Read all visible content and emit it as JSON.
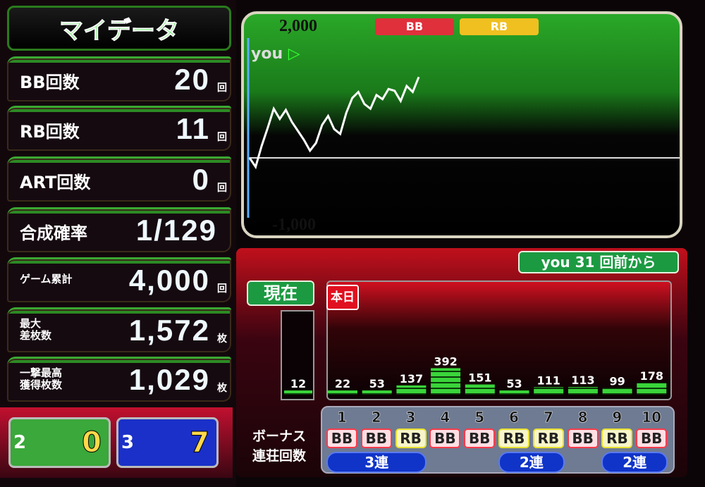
{
  "title": "マイデータ",
  "stats": [
    {
      "label": "BB回数",
      "value": "20",
      "unit": "回"
    },
    {
      "label": "RB回数",
      "value": "11",
      "unit": "回"
    },
    {
      "label": "ART回数",
      "value": "0",
      "unit": "回"
    },
    {
      "label": "合成確率",
      "value": "1/129",
      "unit": ""
    },
    {
      "label": "ゲーム累計",
      "value": "4,000",
      "unit": "回"
    },
    {
      "label": "最大\n差枚数",
      "value": "1,572",
      "unit": "枚"
    },
    {
      "label": "一撃最高\n獲得枚数",
      "value": "1,029",
      "unit": "枚"
    }
  ],
  "mini": [
    {
      "index": "2",
      "value": "0",
      "color": "#3aa83a"
    },
    {
      "index": "3",
      "value": "7",
      "color": "#1a30c8"
    }
  ],
  "graph": {
    "top_label": "2,000",
    "bottom_label": "-1,000",
    "legend": [
      "BB",
      "RB"
    ],
    "legend_colors": [
      "#e0303c",
      "#f0c020"
    ],
    "you_label": "you",
    "chart_data": {
      "type": "line",
      "ylim": [
        -1000,
        2000
      ],
      "y": [
        0,
        -150,
        200,
        500,
        820,
        650,
        800,
        600,
        450,
        300,
        120,
        250,
        550,
        700,
        480,
        400,
        750,
        1000,
        1100,
        900,
        820,
        1050,
        980,
        1150,
        1120,
        950,
        1200,
        1100,
        1350
      ]
    }
  },
  "history": {
    "you_label": "you",
    "since": "31 回前から",
    "current_label": "現在",
    "today_label": "本日",
    "chart_data": {
      "type": "bar",
      "ylim": [
        0,
        1000
      ],
      "yticks": [
        "1000",
        "500",
        "0"
      ],
      "current": 12,
      "values": [
        22,
        53,
        137,
        392,
        151,
        53,
        111,
        113,
        99,
        178
      ]
    },
    "bonus_label": "ボーナス",
    "streak_label": "連荘回数",
    "numbers": [
      "1",
      "2",
      "3",
      "4",
      "5",
      "6",
      "7",
      "8",
      "9",
      "10"
    ],
    "types": [
      "BB",
      "BB",
      "RB",
      "BB",
      "BB",
      "RB",
      "RB",
      "BB",
      "RB",
      "BB"
    ],
    "streaks": [
      {
        "label": "3連",
        "from": 1,
        "to": 3
      },
      {
        "label": "2連",
        "from": 6,
        "to": 7
      },
      {
        "label": "2連",
        "from": 9,
        "to": 10
      }
    ]
  }
}
